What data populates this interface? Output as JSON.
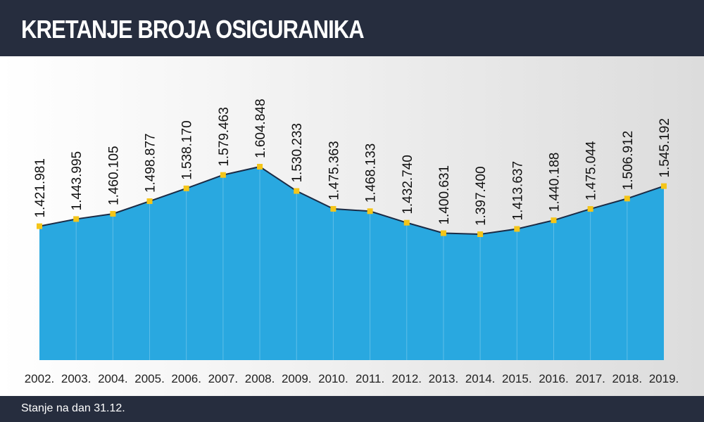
{
  "header": {
    "title": "KRETANJE BROJA OSIGURANIKA"
  },
  "footer": {
    "note": "Stanje na dan 31.12."
  },
  "colors": {
    "header_bg": "#262d3e",
    "area_fill": "#29a8e0",
    "line": "#1b2b45",
    "marker": "#f5c518"
  },
  "chart_data": {
    "type": "area",
    "title": "KRETANJE BROJA OSIGURANIKA",
    "xlabel": "",
    "ylabel": "",
    "grid": false,
    "legend": "none",
    "categories": [
      "2002.",
      "2003.",
      "2004.",
      "2005.",
      "2006.",
      "2007.",
      "2008.",
      "2009.",
      "2010.",
      "2011.",
      "2012.",
      "2013.",
      "2014.",
      "2015.",
      "2016.",
      "2017.",
      "2018.",
      "2019."
    ],
    "values": [
      1421981,
      1443995,
      1460105,
      1498877,
      1538170,
      1579463,
      1604848,
      1530233,
      1475363,
      1468133,
      1432740,
      1400631,
      1397400,
      1413637,
      1440188,
      1475044,
      1506912,
      1545192
    ],
    "data_labels": [
      "1.421.981",
      "1.443.995",
      "1.460.105",
      "1.498.877",
      "1.538.170",
      "1.579.463",
      "1.604.848",
      "1.530.233",
      "1.475.363",
      "1.468.133",
      "1.432.740",
      "1.400.631",
      "1.397.400",
      "1.413.637",
      "1.440.188",
      "1.475.044",
      "1.506.912",
      "1.545.192"
    ]
  }
}
